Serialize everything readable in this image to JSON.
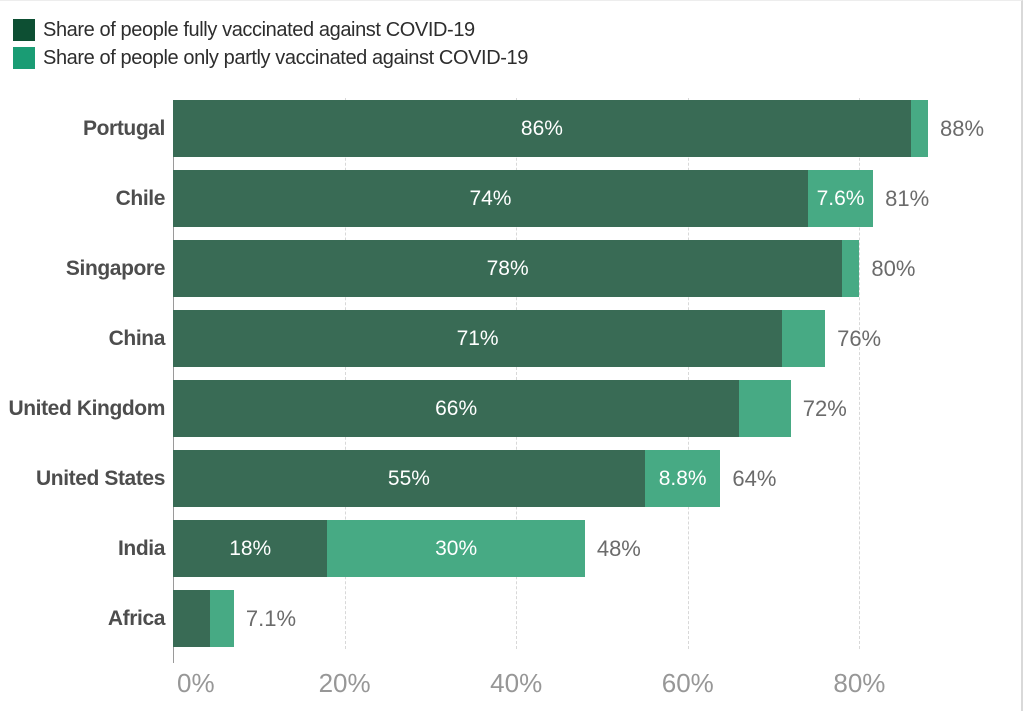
{
  "legend": {
    "items": [
      {
        "label": "Share of people fully vaccinated against COVID-19",
        "color": "#0d4f33"
      },
      {
        "label": "Share of people only partly vaccinated against COVID-19",
        "color": "#1a9c74"
      }
    ]
  },
  "chart_data": {
    "type": "bar",
    "orientation": "horizontal",
    "stacked": true,
    "title": "",
    "xlabel": "",
    "ylabel": "",
    "grid": "dashed-vertical",
    "legend_position": "top-left",
    "xlim": [
      0,
      98
    ],
    "categories": [
      "Portugal",
      "Chile",
      "Singapore",
      "China",
      "United Kingdom",
      "United States",
      "India",
      "Africa"
    ],
    "series": [
      {
        "name": "Share of people fully vaccinated against COVID-19",
        "color": "#396b55",
        "values": [
          86,
          74,
          78,
          71,
          66,
          55,
          18,
          4.3
        ],
        "labels": [
          "86%",
          "74%",
          "78%",
          "71%",
          "66%",
          "55%",
          "18%",
          ""
        ]
      },
      {
        "name": "Share of people only partly vaccinated against COVID-19",
        "color": "#47aa84",
        "values": [
          2,
          7.6,
          2,
          5,
          6,
          8.8,
          30,
          2.8
        ],
        "labels": [
          "",
          "7.6%",
          "",
          "",
          "",
          "8.8%",
          "30%",
          ""
        ]
      }
    ],
    "totals": [
      "88%",
      "81%",
      "80%",
      "76%",
      "72%",
      "64%",
      "48%",
      "7.1%"
    ],
    "x_ticks": [
      {
        "value": 0,
        "label": "0%"
      },
      {
        "value": 20,
        "label": "20%"
      },
      {
        "value": 40,
        "label": "40%"
      },
      {
        "value": 60,
        "label": "60%"
      },
      {
        "value": 80,
        "label": "80%"
      }
    ]
  }
}
